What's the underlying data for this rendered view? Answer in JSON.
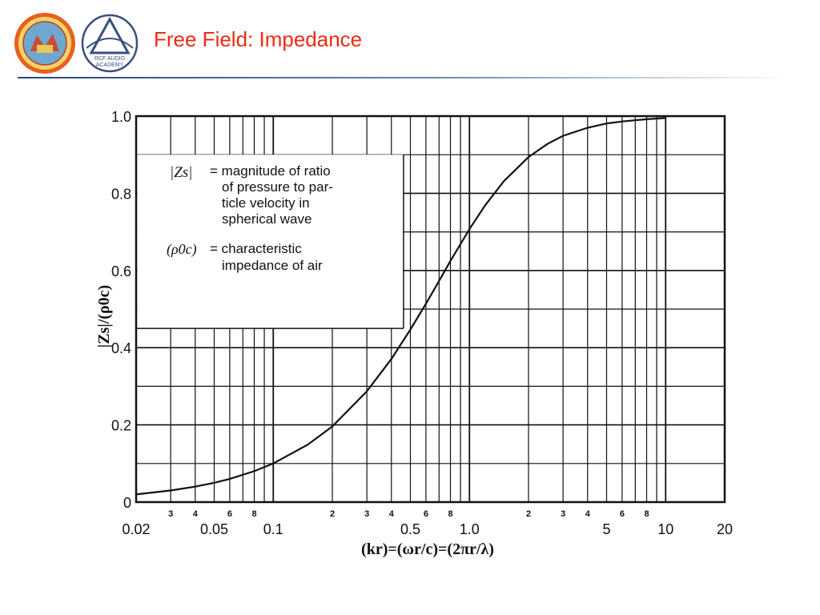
{
  "slide": {
    "title": "Free Field: Impedance",
    "logo2_text_line1": "RCF AUDIO",
    "logo2_text_line2": "ACADEMY"
  },
  "colors": {
    "title": "#ef2b12",
    "rule": "#27477a",
    "ink": "#111111"
  },
  "chart_data": {
    "type": "line",
    "x_scale": "log",
    "xlim": [
      0.02,
      20
    ],
    "ylim": [
      0,
      1.0
    ],
    "grid": true,
    "xlabel": "(kr)=(ωr/c)=(2πr/λ)",
    "ylabel": "|Zs|/(ρ0c)",
    "ytick_labels": [
      "0",
      "0.2",
      "0.4",
      "0.6",
      "0.8",
      "1.0"
    ],
    "ytick_values": [
      0,
      0.2,
      0.4,
      0.6,
      0.8,
      1.0
    ],
    "xtick_major": [
      {
        "value": 0.02,
        "label": "0.02"
      },
      {
        "value": 0.05,
        "label": "0.05"
      },
      {
        "value": 0.1,
        "label": "0.1"
      },
      {
        "value": 0.5,
        "label": "0.5"
      },
      {
        "value": 1.0,
        "label": "1.0"
      },
      {
        "value": 5,
        "label": "5"
      },
      {
        "value": 10,
        "label": "10"
      },
      {
        "value": 20,
        "label": "20"
      }
    ],
    "xtick_minor": [
      {
        "value": 0.03,
        "label": "3"
      },
      {
        "value": 0.04,
        "label": "4"
      },
      {
        "value": 0.06,
        "label": "6"
      },
      {
        "value": 0.08,
        "label": "8"
      },
      {
        "value": 0.2,
        "label": "2"
      },
      {
        "value": 0.3,
        "label": "3"
      },
      {
        "value": 0.4,
        "label": "4"
      },
      {
        "value": 0.6,
        "label": "6"
      },
      {
        "value": 0.8,
        "label": "8"
      },
      {
        "value": 2,
        "label": "2"
      },
      {
        "value": 3,
        "label": "3"
      },
      {
        "value": 4,
        "label": "4"
      },
      {
        "value": 6,
        "label": "6"
      },
      {
        "value": 8,
        "label": "8"
      }
    ],
    "series": [
      {
        "x": [
          0.02,
          0.03,
          0.04,
          0.05,
          0.06,
          0.08,
          0.1,
          0.15,
          0.2,
          0.3,
          0.4,
          0.5,
          0.6,
          0.7,
          0.8,
          1.0,
          1.2,
          1.5,
          2.0,
          2.5,
          3.0,
          4.0,
          5.0,
          6.0,
          8.0,
          10.0
        ],
        "y": [
          0.02,
          0.03,
          0.04,
          0.05,
          0.06,
          0.08,
          0.1,
          0.149,
          0.196,
          0.287,
          0.371,
          0.447,
          0.514,
          0.573,
          0.625,
          0.707,
          0.768,
          0.832,
          0.894,
          0.928,
          0.949,
          0.97,
          0.981,
          0.986,
          0.992,
          0.995
        ]
      }
    ],
    "legend": {
      "line1_symbol": "|Zs|",
      "line1_text": [
        "= magnitude of ratio",
        "of pressure to par-",
        "ticle velocity in",
        "spherical wave"
      ],
      "line2_symbol": "(ρ0c)",
      "line2_text": [
        "= characteristic",
        "impedance of air"
      ]
    }
  }
}
